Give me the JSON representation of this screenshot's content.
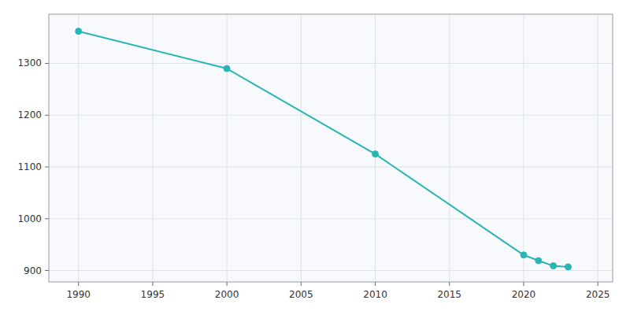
{
  "chart_data": {
    "type": "line",
    "x": [
      1990,
      2000,
      2010,
      2020,
      2021,
      2022,
      2023
    ],
    "values": [
      1362,
      1290,
      1125,
      930,
      919,
      909,
      907
    ],
    "color": "#2ab5b5",
    "marker": "circle",
    "xlim": [
      1988,
      2026
    ],
    "ylim": [
      878,
      1395
    ],
    "xticks": [
      1990,
      1995,
      2000,
      2005,
      2010,
      2015,
      2020,
      2025
    ],
    "yticks": [
      900,
      1000,
      1100,
      1200,
      1300
    ],
    "grid": true
  }
}
